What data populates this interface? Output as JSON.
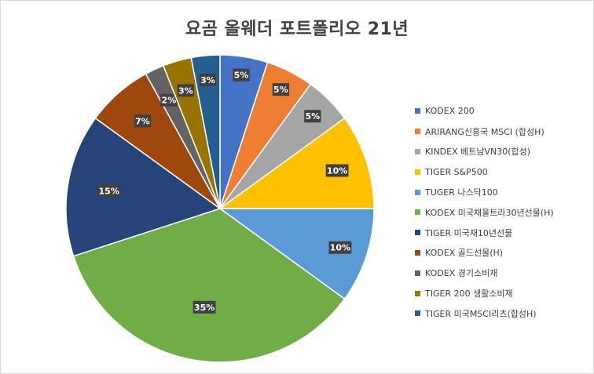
{
  "chart_data": {
    "type": "pie",
    "title": "요곰 올웨더 포트폴리오 21년",
    "legend_position": "right",
    "slices": [
      {
        "label": "KODEX 200",
        "value": 5,
        "display": "5%",
        "color": "#4472c4"
      },
      {
        "label": "ARIRANG신흥국 MSCI (합성H)",
        "value": 5,
        "display": "5%",
        "color": "#ed7d31"
      },
      {
        "label": "KINDEX 베트남VN30(합성)",
        "value": 5,
        "display": "5%",
        "color": "#a5a5a5"
      },
      {
        "label": "TIGER S&P500",
        "value": 10,
        "display": "10%",
        "color": "#ffc000"
      },
      {
        "label": "TUGER 나스닥100",
        "value": 10,
        "display": "10%",
        "color": "#5b9bd5"
      },
      {
        "label": "KODEX 미국채울트라30년선물(H)",
        "value": 35,
        "display": "35%",
        "color": "#70ad47"
      },
      {
        "label": "TIGER 미국채10년선물",
        "value": 15,
        "display": "15%",
        "color": "#264478"
      },
      {
        "label": "KODEX 골드선물(H)",
        "value": 7,
        "display": "7%",
        "color": "#9e480e"
      },
      {
        "label": "KODEX 경기소비재",
        "value": 2,
        "display": "2%",
        "color": "#636363"
      },
      {
        "label": "TIGER 200 생활소비재",
        "value": 3,
        "display": "3%",
        "color": "#997300"
      },
      {
        "label": "TIGER 미국MSCI리츠(합성H)",
        "value": 3,
        "display": "3%",
        "color": "#255e91"
      }
    ]
  }
}
